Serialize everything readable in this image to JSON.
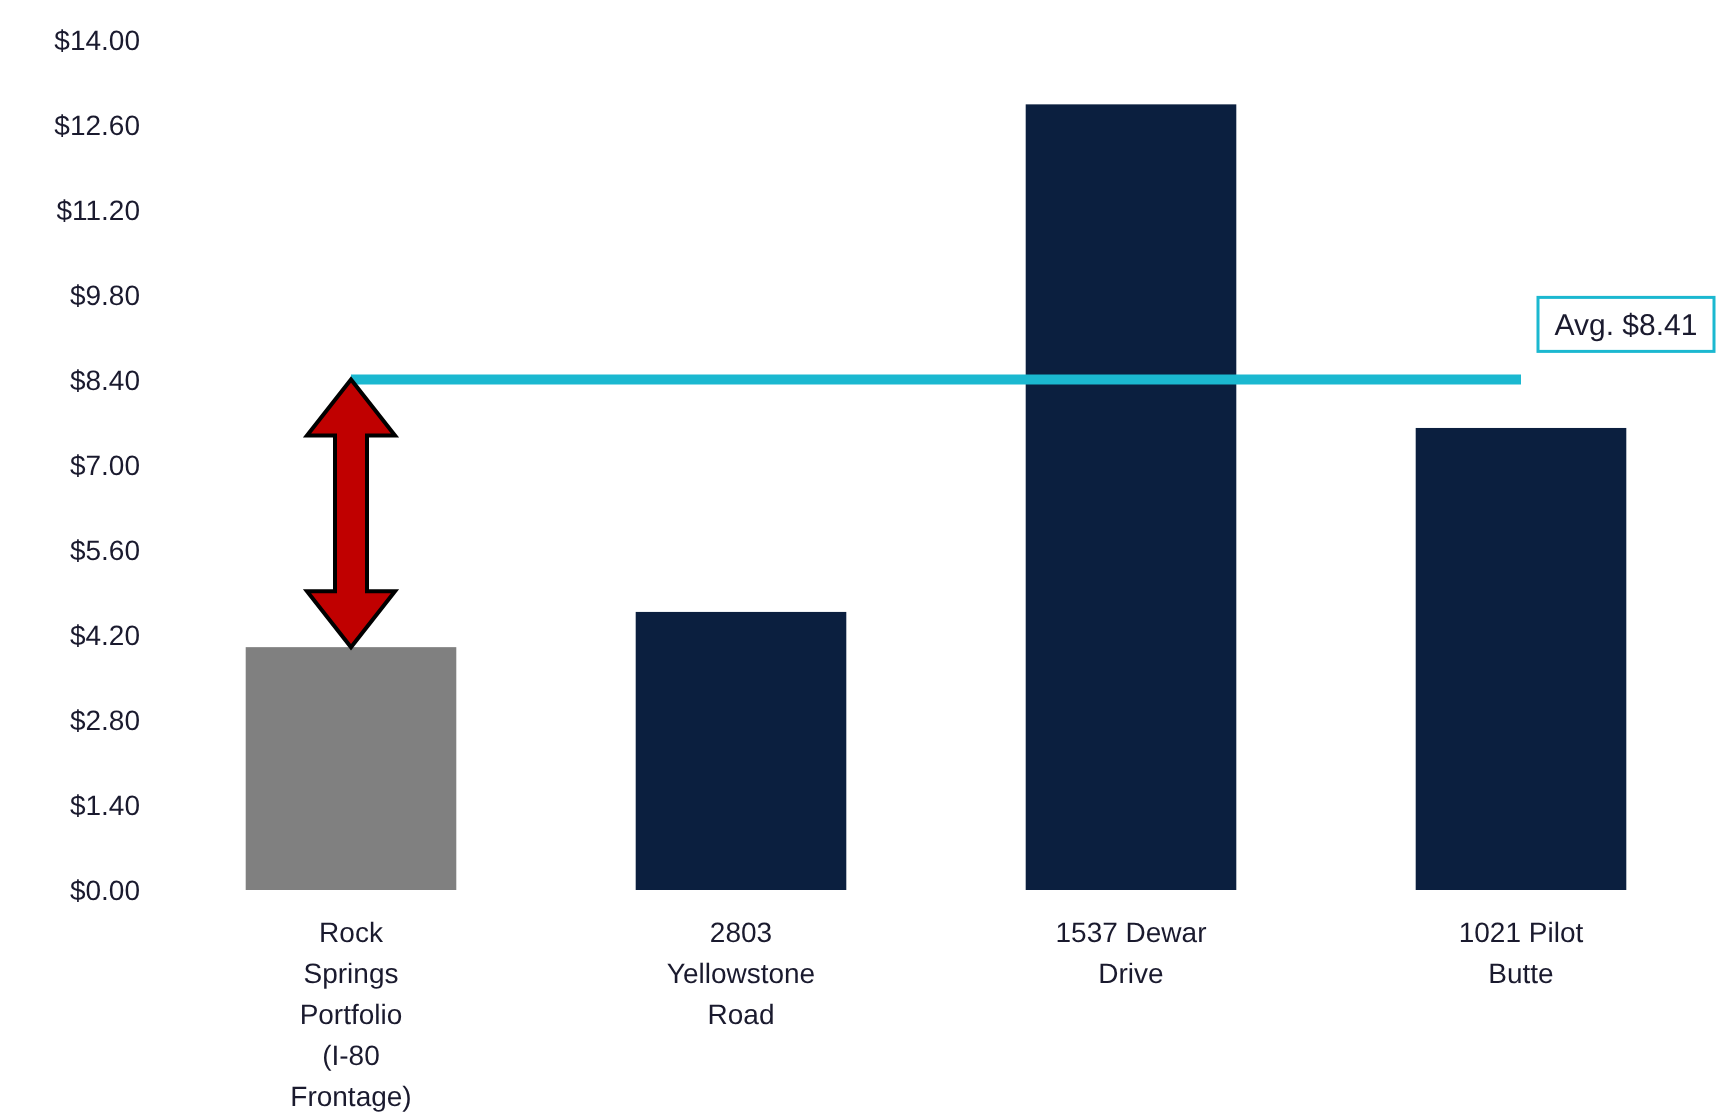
{
  "chart_data": {
    "type": "bar",
    "categories": [
      "Rock Springs Portfolio (I-80 Frontage)",
      "2803 Yellowstone Road",
      "1537 Dewar Drive",
      "1021 Pilot Butte"
    ],
    "values": [
      4.0,
      4.58,
      12.94,
      7.61
    ],
    "colors": [
      "#808080",
      "#0b1f3f",
      "#0b1f3f",
      "#0b1f3f"
    ],
    "ylim": [
      0,
      14
    ],
    "yticks": [
      {
        "value": 0,
        "label": "$0.00"
      },
      {
        "value": 1.4,
        "label": "$1.40"
      },
      {
        "value": 2.8,
        "label": "$2.80"
      },
      {
        "value": 4.2,
        "label": "$4.20"
      },
      {
        "value": 5.6,
        "label": "$5.60"
      },
      {
        "value": 7,
        "label": "$7.00"
      },
      {
        "value": 8.4,
        "label": "$8.40"
      },
      {
        "value": 9.8,
        "label": "$9.80"
      },
      {
        "value": 11.2,
        "label": "$11.20"
      },
      {
        "value": 12.6,
        "label": "$12.60"
      },
      {
        "value": 14,
        "label": "$14.00"
      }
    ],
    "ref_lines": [
      {
        "axis": "y",
        "value": 8.41,
        "label": "Avg. $8.41",
        "color": "#1bb8d0"
      }
    ]
  }
}
